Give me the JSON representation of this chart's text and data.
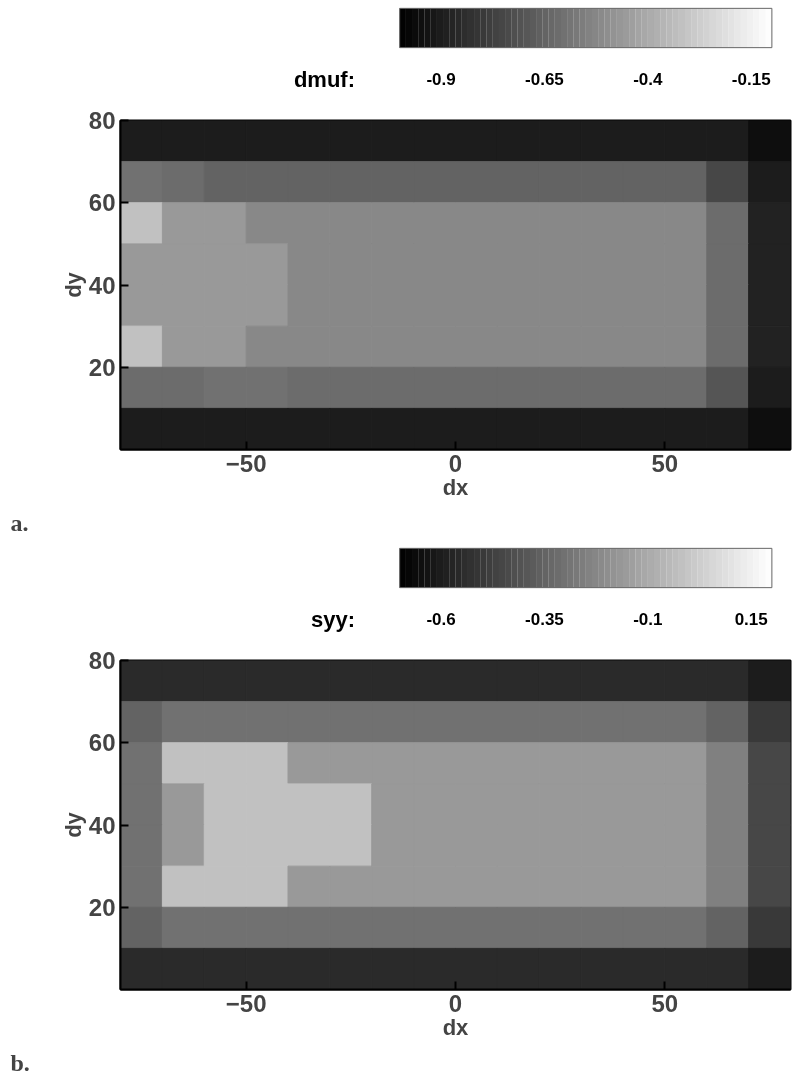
{
  "chart_data": [
    {
      "type": "heatmap",
      "clabel": "dmuf:",
      "xlabel": "dx",
      "ylabel": "dy",
      "annotations": [
        "a."
      ],
      "clim": [
        -1.0,
        -0.1
      ],
      "cticks": [
        -0.9,
        -0.65,
        -0.4,
        -0.15
      ],
      "xlim": [
        -80,
        80
      ],
      "ylim": [
        0,
        80
      ],
      "xticks": [
        -50,
        0,
        50
      ],
      "yticks": [
        20,
        40,
        60,
        80
      ],
      "x": [
        -75,
        -65,
        -55,
        -45,
        -35,
        -25,
        -15,
        -5,
        5,
        15,
        25,
        35,
        45,
        55,
        65,
        75
      ],
      "y": [
        75,
        65,
        55,
        45,
        35,
        25,
        15,
        5
      ],
      "cells": [
        [
          -0.9,
          -0.9,
          -0.9,
          -0.9,
          -0.9,
          -0.9,
          -0.9,
          -0.9,
          -0.9,
          -0.9,
          -0.9,
          -0.9,
          -0.9,
          -0.9,
          -0.9,
          -0.95
        ],
        [
          -0.6,
          -0.62,
          -0.65,
          -0.65,
          -0.65,
          -0.65,
          -0.65,
          -0.65,
          -0.65,
          -0.65,
          -0.65,
          -0.65,
          -0.65,
          -0.65,
          -0.75,
          -0.9
        ],
        [
          -0.32,
          -0.46,
          -0.46,
          -0.52,
          -0.52,
          -0.52,
          -0.52,
          -0.52,
          -0.52,
          -0.52,
          -0.52,
          -0.52,
          -0.52,
          -0.52,
          -0.62,
          -0.88
        ],
        [
          -0.46,
          -0.46,
          -0.46,
          -0.46,
          -0.52,
          -0.52,
          -0.52,
          -0.52,
          -0.52,
          -0.52,
          -0.52,
          -0.52,
          -0.52,
          -0.52,
          -0.62,
          -0.88
        ],
        [
          -0.46,
          -0.46,
          -0.46,
          -0.46,
          -0.52,
          -0.52,
          -0.52,
          -0.52,
          -0.52,
          -0.52,
          -0.52,
          -0.52,
          -0.52,
          -0.52,
          -0.62,
          -0.88
        ],
        [
          -0.32,
          -0.46,
          -0.46,
          -0.52,
          -0.52,
          -0.52,
          -0.52,
          -0.52,
          -0.52,
          -0.52,
          -0.52,
          -0.52,
          -0.52,
          -0.52,
          -0.62,
          -0.88
        ],
        [
          -0.62,
          -0.62,
          -0.6,
          -0.6,
          -0.62,
          -0.62,
          -0.62,
          -0.62,
          -0.62,
          -0.62,
          -0.62,
          -0.62,
          -0.62,
          -0.62,
          -0.7,
          -0.9
        ],
        [
          -0.9,
          -0.9,
          -0.9,
          -0.9,
          -0.9,
          -0.9,
          -0.9,
          -0.9,
          -0.9,
          -0.9,
          -0.9,
          -0.9,
          -0.9,
          -0.9,
          -0.9,
          -0.95
        ]
      ]
    },
    {
      "type": "heatmap",
      "clabel": "syy:",
      "xlabel": "dx",
      "ylabel": "dy",
      "annotations": [
        "b."
      ],
      "clim": [
        -0.7,
        0.2
      ],
      "cticks": [
        -0.6,
        -0.35,
        -0.1,
        0.15
      ],
      "xlim": [
        -80,
        80
      ],
      "ylim": [
        0,
        80
      ],
      "xticks": [
        -50,
        0,
        50
      ],
      "yticks": [
        20,
        40,
        60,
        80
      ],
      "x": [
        -75,
        -65,
        -55,
        -45,
        -35,
        -25,
        -15,
        -5,
        5,
        15,
        25,
        35,
        45,
        55,
        65,
        75
      ],
      "y": [
        75,
        65,
        55,
        45,
        35,
        25,
        15,
        5
      ],
      "cells": [
        [
          -0.55,
          -0.55,
          -0.55,
          -0.55,
          -0.55,
          -0.55,
          -0.55,
          -0.55,
          -0.55,
          -0.55,
          -0.55,
          -0.55,
          -0.55,
          -0.55,
          -0.55,
          -0.6
        ],
        [
          -0.35,
          -0.3,
          -0.3,
          -0.3,
          -0.3,
          -0.3,
          -0.3,
          -0.3,
          -0.3,
          -0.3,
          -0.3,
          -0.3,
          -0.3,
          -0.3,
          -0.35,
          -0.5
        ],
        [
          -0.3,
          -0.02,
          -0.02,
          -0.02,
          -0.16,
          -0.16,
          -0.16,
          -0.16,
          -0.16,
          -0.16,
          -0.16,
          -0.16,
          -0.16,
          -0.16,
          -0.25,
          -0.45
        ],
        [
          -0.3,
          -0.16,
          -0.02,
          -0.02,
          -0.02,
          -0.02,
          -0.16,
          -0.16,
          -0.16,
          -0.16,
          -0.16,
          -0.16,
          -0.16,
          -0.16,
          -0.25,
          -0.45
        ],
        [
          -0.3,
          -0.16,
          -0.02,
          -0.02,
          -0.02,
          -0.02,
          -0.16,
          -0.16,
          -0.16,
          -0.16,
          -0.16,
          -0.16,
          -0.16,
          -0.16,
          -0.25,
          -0.45
        ],
        [
          -0.3,
          -0.02,
          -0.02,
          -0.02,
          -0.16,
          -0.16,
          -0.16,
          -0.16,
          -0.16,
          -0.16,
          -0.16,
          -0.16,
          -0.16,
          -0.16,
          -0.25,
          -0.45
        ],
        [
          -0.35,
          -0.3,
          -0.3,
          -0.3,
          -0.3,
          -0.3,
          -0.3,
          -0.3,
          -0.3,
          -0.3,
          -0.3,
          -0.3,
          -0.3,
          -0.3,
          -0.35,
          -0.5
        ],
        [
          -0.55,
          -0.55,
          -0.55,
          -0.55,
          -0.55,
          -0.55,
          -0.55,
          -0.55,
          -0.55,
          -0.55,
          -0.55,
          -0.55,
          -0.55,
          -0.55,
          -0.55,
          -0.6
        ]
      ]
    }
  ]
}
